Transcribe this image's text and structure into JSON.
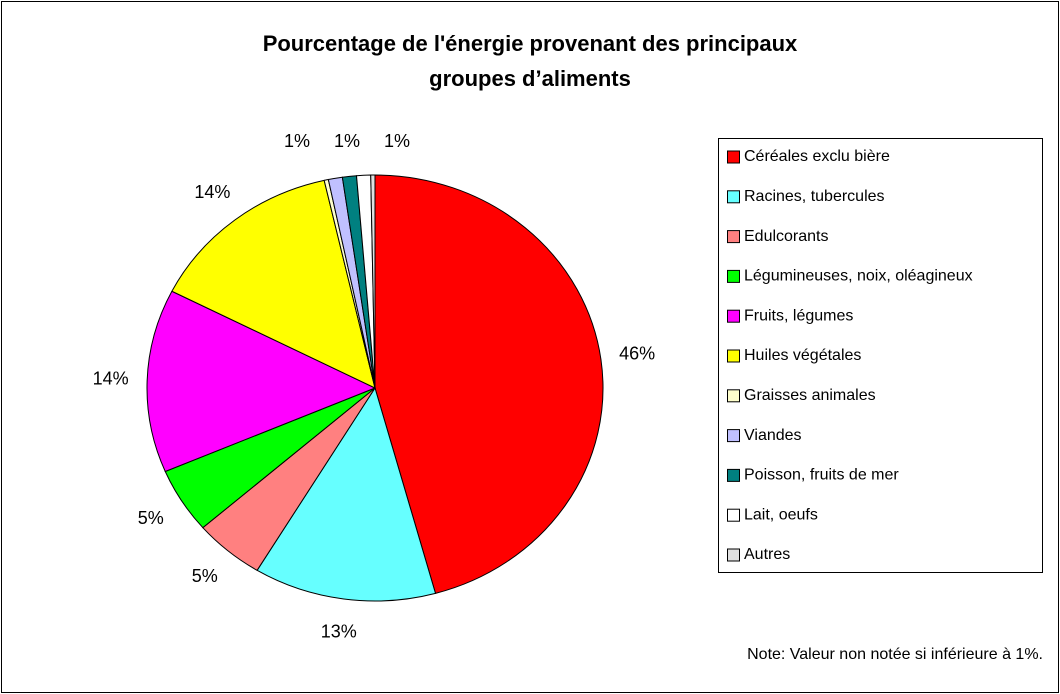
{
  "chart_data": {
    "type": "pie",
    "title": [
      "Pourcentage de l'énergie provenant des principaux",
      "groupes d’aliments"
    ],
    "categories": [
      "Céréales exclu bière",
      "Racines, tubercules",
      "Edulcorants",
      "Légumineuses, noix, oléagineux",
      "Fruits, légumes",
      "Huiles végétales",
      "Graisses animales",
      "Viandes",
      "Poisson, fruits de mer",
      "Lait, oeufs",
      "Autres"
    ],
    "values": [
      46,
      13,
      5,
      5,
      14,
      14,
      0.3,
      1,
      1,
      1,
      0.3
    ],
    "value_labels": [
      "46%",
      "13%",
      "5%",
      "5%",
      "14%",
      "14%",
      null,
      "1%",
      "1%",
      "1%",
      null
    ],
    "colors": [
      "#ff0000",
      "#66ffff",
      "#ff8080",
      "#00ff00",
      "#ff00ff",
      "#ffff00",
      "#ffffcc",
      "#c0c0ff",
      "#008080",
      "#ffffff",
      "#e0e0e0"
    ],
    "note": "Note: Valeur non notée si inférieure à 1%."
  }
}
